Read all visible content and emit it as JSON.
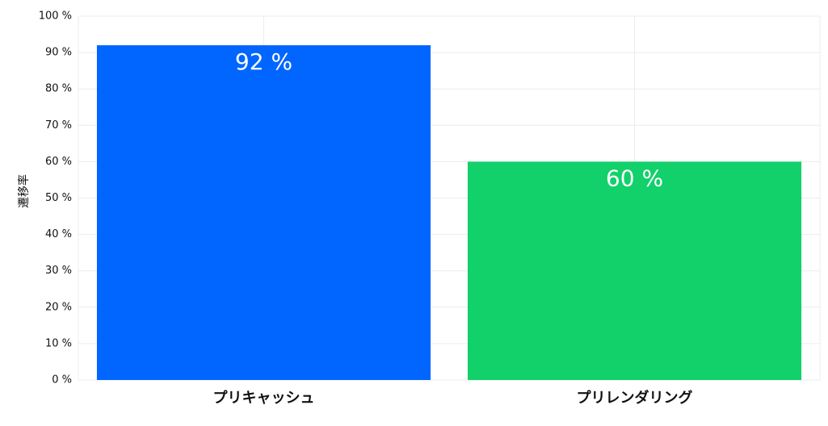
{
  "chart_data": {
    "type": "bar",
    "y_label": "遷移率",
    "categories": [
      "プリキャッシュ",
      "プリレンダリング"
    ],
    "values": [
      92,
      60
    ],
    "value_labels": [
      "92 %",
      "60 %"
    ],
    "colors": [
      "#0066ff",
      "#12d06a"
    ],
    "ylim": [
      0,
      100
    ],
    "yticks": [
      {
        "value": 0,
        "label": "0 %"
      },
      {
        "value": 10,
        "label": "10 %"
      },
      {
        "value": 20,
        "label": "20 %"
      },
      {
        "value": 30,
        "label": "30 %"
      },
      {
        "value": 40,
        "label": "40 %"
      },
      {
        "value": 50,
        "label": "50 %"
      },
      {
        "value": 60,
        "label": "60 %"
      },
      {
        "value": 70,
        "label": "70 %"
      },
      {
        "value": 80,
        "label": "80 %"
      },
      {
        "value": 90,
        "label": "90 %"
      },
      {
        "value": 100,
        "label": "100 %"
      }
    ],
    "grid": true
  }
}
